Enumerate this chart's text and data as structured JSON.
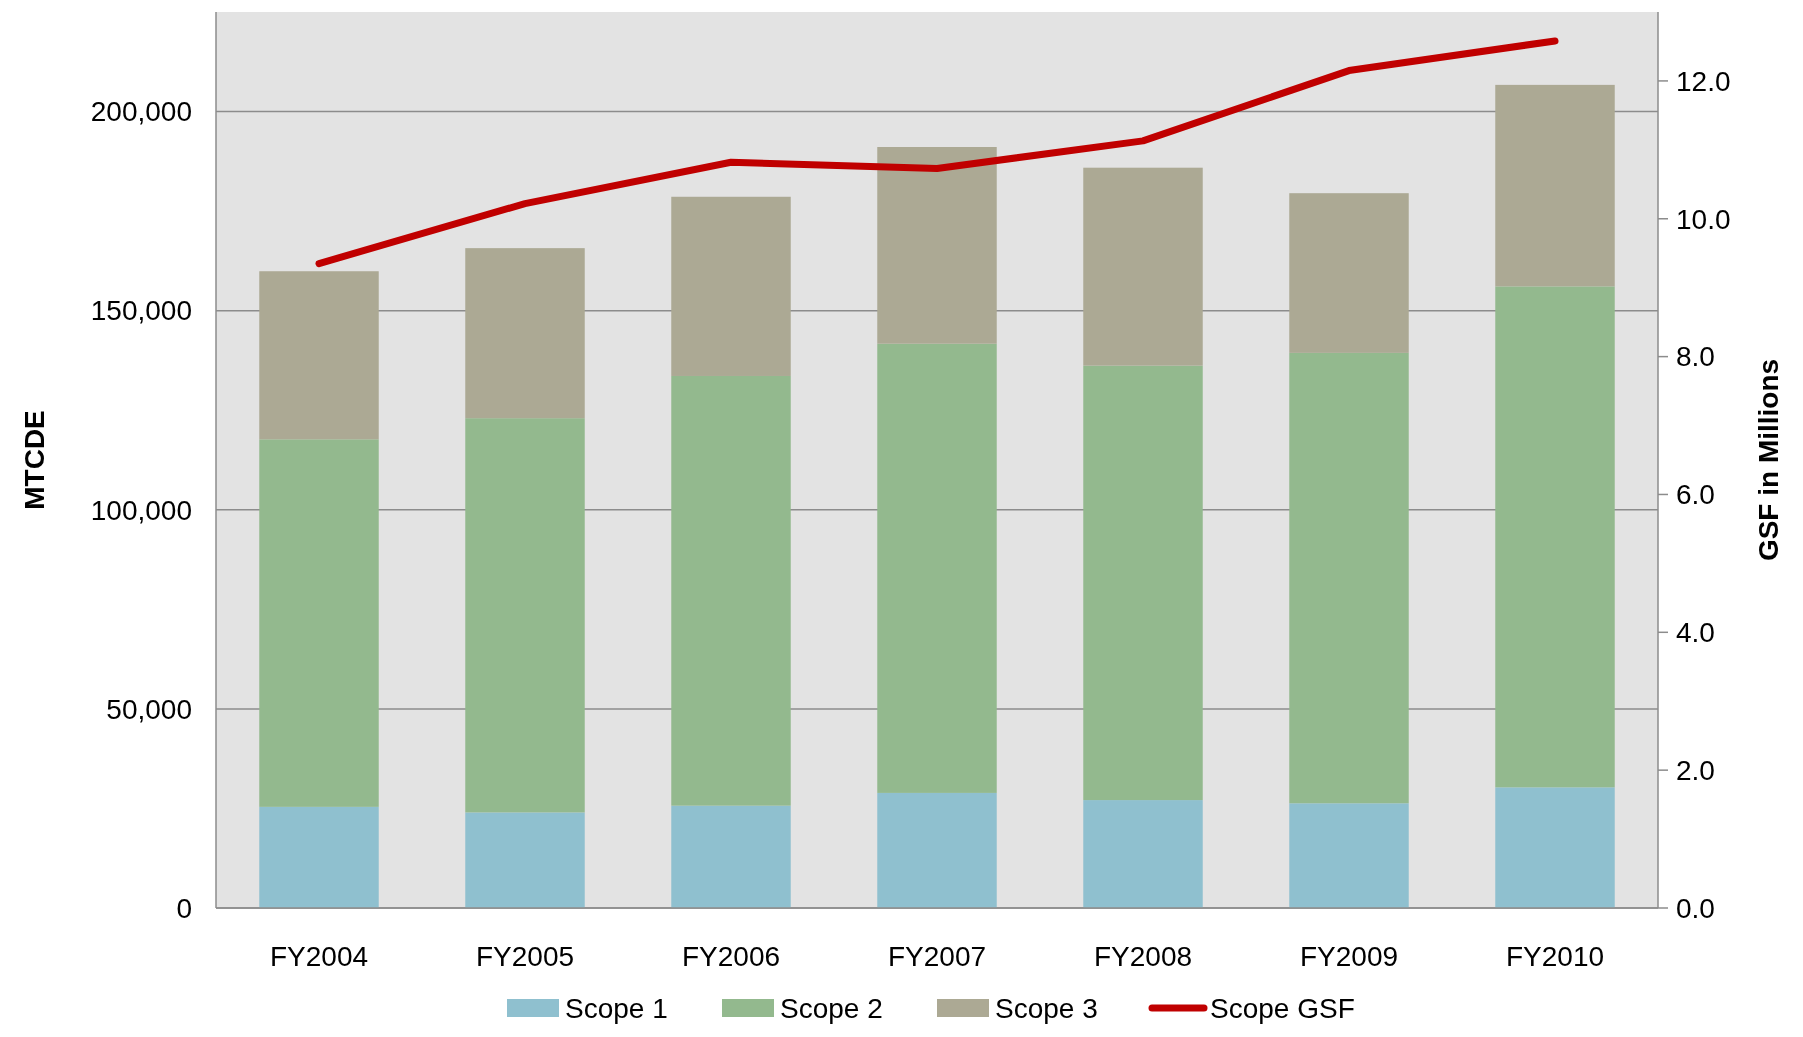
{
  "chart_data": {
    "type": "bar",
    "stacked": true,
    "categories": [
      "FY2004",
      "FY2005",
      "FY2006",
      "FY2007",
      "FY2008",
      "FY2009",
      "FY2010"
    ],
    "series": [
      {
        "name": "Scope 1",
        "color": "#8fc0cf",
        "values": [
          25400,
          24000,
          25700,
          28900,
          27100,
          26300,
          30300
        ]
      },
      {
        "name": "Scope 2",
        "color": "#93b98e",
        "values": [
          92300,
          99000,
          107900,
          112800,
          109100,
          113100,
          125800
        ]
      },
      {
        "name": "Scope 3",
        "color": "#aca994",
        "values": [
          42200,
          42700,
          45000,
          49400,
          49700,
          40100,
          50600
        ]
      },
      {
        "name": "Scope GSF",
        "type": "line",
        "axis": "y2",
        "color": "#c00000",
        "values": [
          9.35,
          10.22,
          10.82,
          10.73,
          11.13,
          12.15,
          12.58
        ]
      }
    ],
    "ylabel": "MTCDE",
    "y2label": "GSF in Millions",
    "ylim": [
      0,
      225000
    ],
    "yticks": [
      0,
      {
        "value": 50000,
        "label": "50,000"
      },
      {
        "value": 100000,
        "label": "100,000"
      },
      {
        "value": 150000,
        "label": "150,000"
      },
      {
        "value": 200000,
        "label": "200,000"
      }
    ],
    "y2lim": [
      0,
      13
    ],
    "y2ticks": [
      {
        "value": 0,
        "label": "0.0"
      },
      {
        "value": 2,
        "label": "2.0"
      },
      {
        "value": 4,
        "label": "4.0"
      },
      {
        "value": 6,
        "label": "6.0"
      },
      {
        "value": 8,
        "label": "8.0"
      },
      {
        "value": 10,
        "label": "10.0"
      },
      {
        "value": 12,
        "label": "12.0"
      }
    ],
    "grid": "y",
    "legend": "bottom",
    "marker": "none"
  }
}
